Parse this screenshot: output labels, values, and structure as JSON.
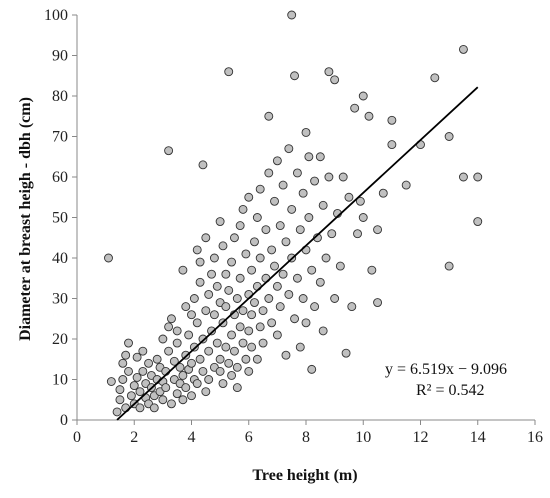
{
  "chart_data": {
    "type": "scatter",
    "xlabel": "Tree height (m)",
    "ylabel": "Diameter at breast heigh - dbh (cm)",
    "xlim": [
      0,
      16
    ],
    "ylim": [
      0,
      100
    ],
    "xticks": [
      "0",
      "2",
      "4",
      "6",
      "8",
      "10",
      "12",
      "14",
      "16"
    ],
    "yticks": [
      "0",
      "10",
      "20",
      "30",
      "40",
      "50",
      "60",
      "70",
      "80",
      "90",
      "100"
    ],
    "grid": false,
    "legend": "none",
    "marker": {
      "fill": "#c0c0c0",
      "stroke": "#333333"
    },
    "trendline": {
      "slope": 6.519,
      "intercept": -9.096,
      "x_range": [
        1.4,
        14
      ],
      "color": "#000000"
    },
    "equation": "y = 6.519x − 9.096",
    "r_squared": "R² = 0.542",
    "points": [
      [
        1.1,
        40
      ],
      [
        1.2,
        9.5
      ],
      [
        1.4,
        2
      ],
      [
        1.5,
        5
      ],
      [
        1.5,
        7.5
      ],
      [
        1.6,
        10
      ],
      [
        1.6,
        14
      ],
      [
        1.7,
        3
      ],
      [
        1.7,
        16
      ],
      [
        1.8,
        19
      ],
      [
        1.8,
        12
      ],
      [
        1.9,
        6
      ],
      [
        2.0,
        8.5
      ],
      [
        2.0,
        4
      ],
      [
        2.1,
        15.5
      ],
      [
        2.1,
        10.5
      ],
      [
        2.2,
        7
      ],
      [
        2.2,
        3
      ],
      [
        2.3,
        17
      ],
      [
        2.3,
        12
      ],
      [
        2.4,
        9
      ],
      [
        2.4,
        5.5
      ],
      [
        2.5,
        14
      ],
      [
        2.5,
        4
      ],
      [
        2.6,
        11
      ],
      [
        2.6,
        8
      ],
      [
        2.7,
        6
      ],
      [
        2.7,
        3
      ],
      [
        2.8,
        15
      ],
      [
        2.8,
        10
      ],
      [
        2.9,
        13
      ],
      [
        2.9,
        7
      ],
      [
        3.0,
        5
      ],
      [
        3.0,
        9.5
      ],
      [
        3.0,
        20
      ],
      [
        3.1,
        12
      ],
      [
        3.1,
        8
      ],
      [
        3.2,
        66.5
      ],
      [
        3.2,
        23
      ],
      [
        3.2,
        17
      ],
      [
        3.3,
        25
      ],
      [
        3.3,
        4
      ],
      [
        3.4,
        10
      ],
      [
        3.4,
        14.5
      ],
      [
        3.5,
        6.5
      ],
      [
        3.5,
        19
      ],
      [
        3.5,
        22
      ],
      [
        3.6,
        9
      ],
      [
        3.6,
        13
      ],
      [
        3.7,
        37
      ],
      [
        3.7,
        5
      ],
      [
        3.7,
        11
      ],
      [
        3.8,
        16
      ],
      [
        3.8,
        28
      ],
      [
        3.8,
        8
      ],
      [
        3.9,
        21
      ],
      [
        3.9,
        12.5
      ],
      [
        4.0,
        14
      ],
      [
        4.0,
        6
      ],
      [
        4.0,
        26
      ],
      [
        4.1,
        30
      ],
      [
        4.1,
        18
      ],
      [
        4.1,
        10
      ],
      [
        4.2,
        42
      ],
      [
        4.2,
        24
      ],
      [
        4.2,
        9
      ],
      [
        4.3,
        39
      ],
      [
        4.3,
        15
      ],
      [
        4.3,
        34
      ],
      [
        4.4,
        63
      ],
      [
        4.4,
        20
      ],
      [
        4.4,
        12
      ],
      [
        4.5,
        27
      ],
      [
        4.5,
        7
      ],
      [
        4.5,
        45
      ],
      [
        4.6,
        31
      ],
      [
        4.6,
        17
      ],
      [
        4.6,
        10
      ],
      [
        4.7,
        36
      ],
      [
        4.7,
        22
      ],
      [
        4.8,
        13
      ],
      [
        4.8,
        40
      ],
      [
        4.8,
        26
      ],
      [
        4.9,
        19
      ],
      [
        4.9,
        33
      ],
      [
        5.0,
        49
      ],
      [
        5.0,
        29
      ],
      [
        5.0,
        12
      ],
      [
        5.0,
        15
      ],
      [
        5.1,
        43
      ],
      [
        5.1,
        24
      ],
      [
        5.1,
        9
      ],
      [
        5.2,
        36
      ],
      [
        5.2,
        18
      ],
      [
        5.2,
        28
      ],
      [
        5.3,
        86
      ],
      [
        5.3,
        32
      ],
      [
        5.3,
        14
      ],
      [
        5.4,
        39
      ],
      [
        5.4,
        21
      ],
      [
        5.4,
        11
      ],
      [
        5.5,
        26
      ],
      [
        5.5,
        45
      ],
      [
        5.5,
        17
      ],
      [
        5.6,
        30
      ],
      [
        5.6,
        8
      ],
      [
        5.6,
        13
      ],
      [
        5.7,
        48
      ],
      [
        5.7,
        23
      ],
      [
        5.7,
        35
      ],
      [
        5.8,
        19
      ],
      [
        5.8,
        52
      ],
      [
        5.8,
        27
      ],
      [
        5.9,
        41
      ],
      [
        5.9,
        15
      ],
      [
        6.0,
        31
      ],
      [
        6.0,
        55
      ],
      [
        6.0,
        22
      ],
      [
        6.0,
        12
      ],
      [
        6.1,
        37
      ],
      [
        6.1,
        26
      ],
      [
        6.1,
        18
      ],
      [
        6.2,
        44
      ],
      [
        6.2,
        29
      ],
      [
        6.3,
        15
      ],
      [
        6.3,
        50
      ],
      [
        6.3,
        33
      ],
      [
        6.4,
        23
      ],
      [
        6.4,
        57
      ],
      [
        6.4,
        40
      ],
      [
        6.5,
        27
      ],
      [
        6.5,
        19
      ],
      [
        6.6,
        47
      ],
      [
        6.6,
        35
      ],
      [
        6.7,
        75
      ],
      [
        6.7,
        61
      ],
      [
        6.7,
        30
      ],
      [
        6.8,
        42
      ],
      [
        6.8,
        24
      ],
      [
        6.9,
        54
      ],
      [
        6.9,
        38
      ],
      [
        7.0,
        64
      ],
      [
        7.0,
        33
      ],
      [
        7.0,
        21
      ],
      [
        7.1,
        48
      ],
      [
        7.1,
        28
      ],
      [
        7.2,
        58
      ],
      [
        7.2,
        36
      ],
      [
        7.3,
        44
      ],
      [
        7.3,
        16
      ],
      [
        7.4,
        67
      ],
      [
        7.4,
        31
      ],
      [
        7.5,
        100
      ],
      [
        7.5,
        52
      ],
      [
        7.5,
        40
      ],
      [
        7.6,
        85
      ],
      [
        7.6,
        25
      ],
      [
        7.7,
        61
      ],
      [
        7.7,
        35
      ],
      [
        7.8,
        47
      ],
      [
        7.8,
        18
      ],
      [
        7.9,
        56
      ],
      [
        7.9,
        30
      ],
      [
        8.0,
        71
      ],
      [
        8.0,
        42
      ],
      [
        8.0,
        24
      ],
      [
        8.1,
        65
      ],
      [
        8.1,
        50
      ],
      [
        8.2,
        37
      ],
      [
        8.2,
        12.5
      ],
      [
        8.3,
        59
      ],
      [
        8.3,
        28
      ],
      [
        8.4,
        45
      ],
      [
        8.5,
        65
      ],
      [
        8.5,
        34
      ],
      [
        8.6,
        53
      ],
      [
        8.6,
        22
      ],
      [
        8.7,
        40
      ],
      [
        8.8,
        86
      ],
      [
        8.8,
        60
      ],
      [
        8.9,
        46
      ],
      [
        9.0,
        84
      ],
      [
        9.0,
        30
      ],
      [
        9.1,
        51
      ],
      [
        9.2,
        38
      ],
      [
        9.3,
        60
      ],
      [
        9.4,
        16.5
      ],
      [
        9.5,
        55
      ],
      [
        9.6,
        28
      ],
      [
        9.7,
        77
      ],
      [
        9.8,
        46
      ],
      [
        9.9,
        54
      ],
      [
        10.0,
        80
      ],
      [
        10.0,
        50
      ],
      [
        10.2,
        75
      ],
      [
        10.3,
        37
      ],
      [
        10.5,
        29
      ],
      [
        10.5,
        47
      ],
      [
        10.7,
        56
      ],
      [
        11.0,
        74
      ],
      [
        11.0,
        68
      ],
      [
        11.5,
        58
      ],
      [
        12.0,
        68
      ],
      [
        12.5,
        84.5
      ],
      [
        13.0,
        70
      ],
      [
        13.0,
        38
      ],
      [
        13.5,
        91.5
      ],
      [
        13.5,
        60
      ],
      [
        14.0,
        60
      ],
      [
        14.0,
        49
      ]
    ]
  }
}
